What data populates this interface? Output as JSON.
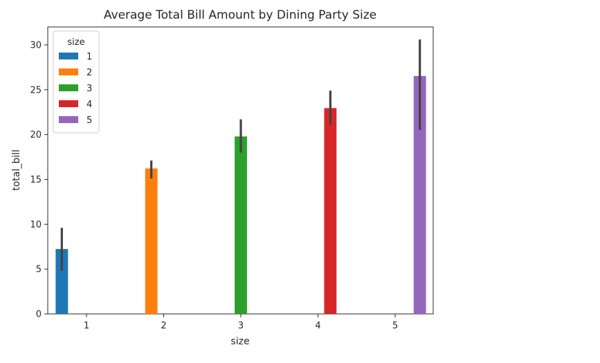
{
  "chart_data": {
    "type": "bar",
    "title": "Average Total Bill Amount by Dining Party Size",
    "xlabel": "size",
    "ylabel": "total_bill",
    "categories": [
      "1",
      "2",
      "3",
      "4",
      "5"
    ],
    "ylim": [
      0,
      32
    ],
    "yticks": [
      0,
      5,
      10,
      15,
      20,
      25,
      30
    ],
    "grid": false,
    "legend": {
      "title": "size",
      "position": "top-left",
      "entries": [
        "1",
        "2",
        "3",
        "4",
        "5"
      ]
    },
    "hue": "size",
    "series": [
      {
        "name": "1",
        "color": "#1f77b4",
        "value": 7.24,
        "ci": [
          4.8,
          9.6
        ]
      },
      {
        "name": "2",
        "color": "#ff7f0e",
        "value": 16.22,
        "ci": [
          15.1,
          17.1
        ]
      },
      {
        "name": "3",
        "color": "#2ca02c",
        "value": 19.79,
        "ci": [
          18.0,
          21.7
        ]
      },
      {
        "name": "4",
        "color": "#d62728",
        "value": 22.95,
        "ci": [
          21.1,
          24.9
        ]
      },
      {
        "name": "5",
        "color": "#9467bd",
        "value": 26.53,
        "ci": [
          20.5,
          30.6
        ]
      }
    ]
  }
}
